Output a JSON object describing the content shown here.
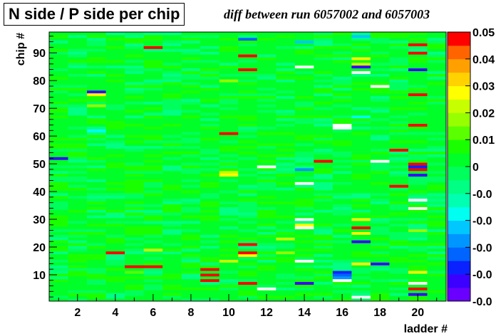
{
  "chart_data": {
    "type": "heatmap",
    "title": "N side / P side per chip",
    "subtitle": "diff between run 6057002 and 6057003",
    "xlabel": "ladder #",
    "ylabel": "chip #",
    "x_range": [
      1,
      21
    ],
    "y_range": [
      1,
      97
    ],
    "x_ticks": [
      2,
      4,
      6,
      8,
      10,
      12,
      14,
      16,
      18,
      20
    ],
    "y_ticks": [
      10,
      20,
      30,
      40,
      50,
      60,
      70,
      80,
      90
    ],
    "z_range": [
      -0.05,
      0.05
    ],
    "palette_labels": [
      "0.05",
      "0.04",
      "0.03",
      "0.02",
      "0.01",
      "0",
      "-0.0",
      "-0.0",
      "-0.0",
      "-0.0",
      "-0.0"
    ],
    "background_value": 0.0,
    "highlighted_cells": [
      {
        "ladder": 1,
        "chip": 52,
        "value": -0.045
      },
      {
        "ladder": 3,
        "chip": 76,
        "value": -0.045
      },
      {
        "ladder": 3,
        "chip": 75,
        "value": 0.025
      },
      {
        "ladder": 3,
        "chip": 71,
        "value": 0.018
      },
      {
        "ladder": 3,
        "chip": 62,
        "value": -0.02
      },
      {
        "ladder": 4,
        "chip": 18,
        "value": 0.05
      },
      {
        "ladder": 5,
        "chip": 13,
        "value": 0.05
      },
      {
        "ladder": 5,
        "chip": 11,
        "value": 0.012
      },
      {
        "ladder": 6,
        "chip": 13,
        "value": 0.05
      },
      {
        "ladder": 6,
        "chip": 19,
        "value": 0.02
      },
      {
        "ladder": 6,
        "chip": 92,
        "value": 0.05
      },
      {
        "ladder": 9,
        "chip": 12,
        "value": 0.05
      },
      {
        "ladder": 9,
        "chip": 10,
        "value": 0.05
      },
      {
        "ladder": 9,
        "chip": 8,
        "value": 0.05
      },
      {
        "ladder": 10,
        "chip": 61,
        "value": 0.05
      },
      {
        "ladder": 10,
        "chip": 47,
        "value": 0.02
      },
      {
        "ladder": 10,
        "chip": 46,
        "value": 0.025
      },
      {
        "ladder": 10,
        "chip": 80,
        "value": 0.015
      },
      {
        "ladder": 10,
        "chip": 15,
        "value": 0.022
      },
      {
        "ladder": 11,
        "chip": 95,
        "value": -0.035
      },
      {
        "ladder": 11,
        "chip": 89,
        "value": 0.05
      },
      {
        "ladder": 11,
        "chip": 84,
        "value": 0.05
      },
      {
        "ladder": 11,
        "chip": 21,
        "value": 0.045
      },
      {
        "ladder": 11,
        "chip": 18,
        "value": 0.05
      },
      {
        "ladder": 11,
        "chip": 17,
        "value": 0.025
      },
      {
        "ladder": 11,
        "chip": 7,
        "value": 0.05
      },
      {
        "ladder": 12,
        "chip": 49,
        "value": -0.05
      },
      {
        "ladder": 12,
        "chip": 5,
        "value": -0.05
      },
      {
        "ladder": 13,
        "chip": 23,
        "value": 0.02
      },
      {
        "ladder": 13,
        "chip": 18,
        "value": 0.015
      },
      {
        "ladder": 14,
        "chip": 85,
        "value": -0.05
      },
      {
        "ladder": 14,
        "chip": 48,
        "value": -0.03
      },
      {
        "ladder": 14,
        "chip": 43,
        "value": -0.05
      },
      {
        "ladder": 14,
        "chip": 30,
        "value": -0.05
      },
      {
        "ladder": 14,
        "chip": 28,
        "value": 0.025
      },
      {
        "ladder": 14,
        "chip": 27,
        "value": -0.05
      },
      {
        "ladder": 14,
        "chip": 15,
        "value": -0.05
      },
      {
        "ladder": 14,
        "chip": 7,
        "value": -0.045
      },
      {
        "ladder": 14,
        "chip": 94,
        "value": -0.025
      },
      {
        "ladder": 15,
        "chip": 51,
        "value": 0.05
      },
      {
        "ladder": 16,
        "chip": 64,
        "value": -0.05
      },
      {
        "ladder": 16,
        "chip": 63,
        "value": -0.05
      },
      {
        "ladder": 16,
        "chip": 11,
        "value": -0.04
      },
      {
        "ladder": 16,
        "chip": 10,
        "value": -0.035
      },
      {
        "ladder": 16,
        "chip": 9,
        "value": -0.03
      },
      {
        "ladder": 16,
        "chip": 8,
        "value": -0.05
      },
      {
        "ladder": 17,
        "chip": 96,
        "value": -0.025
      },
      {
        "ladder": 17,
        "chip": 88,
        "value": 0.028
      },
      {
        "ladder": 17,
        "chip": 86,
        "value": 0.022
      },
      {
        "ladder": 17,
        "chip": 85,
        "value": -0.045
      },
      {
        "ladder": 17,
        "chip": 83,
        "value": -0.05
      },
      {
        "ladder": 17,
        "chip": 67,
        "value": -0.02
      },
      {
        "ladder": 17,
        "chip": 30,
        "value": 0.028
      },
      {
        "ladder": 17,
        "chip": 27,
        "value": 0.05
      },
      {
        "ladder": 17,
        "chip": 25,
        "value": 0.025
      },
      {
        "ladder": 17,
        "chip": 22,
        "value": -0.045
      },
      {
        "ladder": 17,
        "chip": 14,
        "value": 0.03
      },
      {
        "ladder": 17,
        "chip": 2,
        "value": -0.05
      },
      {
        "ladder": 18,
        "chip": 78,
        "value": -0.05
      },
      {
        "ladder": 18,
        "chip": 51,
        "value": -0.05
      },
      {
        "ladder": 18,
        "chip": 14,
        "value": -0.045
      },
      {
        "ladder": 19,
        "chip": 55,
        "value": 0.05
      },
      {
        "ladder": 19,
        "chip": 42,
        "value": 0.05
      },
      {
        "ladder": 20,
        "chip": 93,
        "value": 0.05
      },
      {
        "ladder": 20,
        "chip": 90,
        "value": 0.05
      },
      {
        "ladder": 20,
        "chip": 84,
        "value": -0.045
      },
      {
        "ladder": 20,
        "chip": 75,
        "value": 0.05
      },
      {
        "ladder": 20,
        "chip": 64,
        "value": 0.05
      },
      {
        "ladder": 20,
        "chip": 50,
        "value": 0.05
      },
      {
        "ladder": 20,
        "chip": 49,
        "value": -0.04
      },
      {
        "ladder": 20,
        "chip": 48,
        "value": 0.05
      },
      {
        "ladder": 20,
        "chip": 46,
        "value": -0.045
      },
      {
        "ladder": 20,
        "chip": 37,
        "value": -0.05
      },
      {
        "ladder": 20,
        "chip": 34,
        "value": -0.05
      },
      {
        "ladder": 20,
        "chip": 26,
        "value": 0.015
      },
      {
        "ladder": 20,
        "chip": 11,
        "value": 0.025
      },
      {
        "ladder": 20,
        "chip": 7,
        "value": -0.05
      },
      {
        "ladder": 20,
        "chip": 5,
        "value": 0.05
      },
      {
        "ladder": 20,
        "chip": 3,
        "value": -0.045
      }
    ]
  }
}
